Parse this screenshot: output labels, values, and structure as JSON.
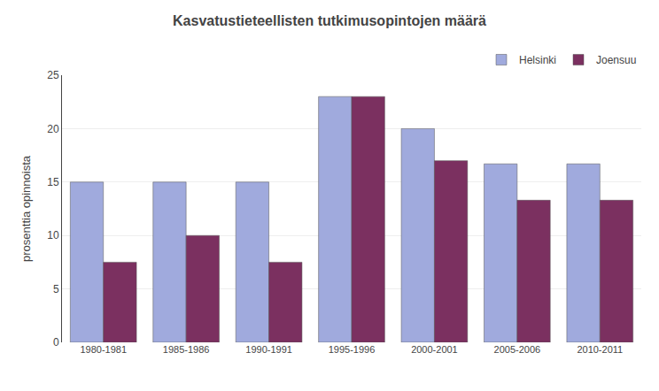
{
  "chart_data": {
    "type": "bar",
    "title": "Kasvatustieteellisten tutkimusopintojen määrä",
    "categories": [
      "1980-1981",
      "1985-1986",
      "1990-1991",
      "1995-1996",
      "2000-2001",
      "2005-2006",
      "2010-2011"
    ],
    "series": [
      {
        "name": "Helsinki",
        "color": "#a0aadd",
        "values": [
          15,
          15,
          15,
          23,
          20,
          16.7,
          16.7
        ]
      },
      {
        "name": "Joensuu",
        "color": "#7b3060",
        "values": [
          7.5,
          10,
          7.5,
          23,
          17,
          13.3,
          13.3
        ]
      }
    ],
    "ylabel": "prosenttia opinnoista",
    "ylim": [
      0,
      25
    ],
    "yticks": [
      0,
      5,
      10,
      15,
      20,
      25
    ],
    "grid": true,
    "legend": "upper right"
  }
}
